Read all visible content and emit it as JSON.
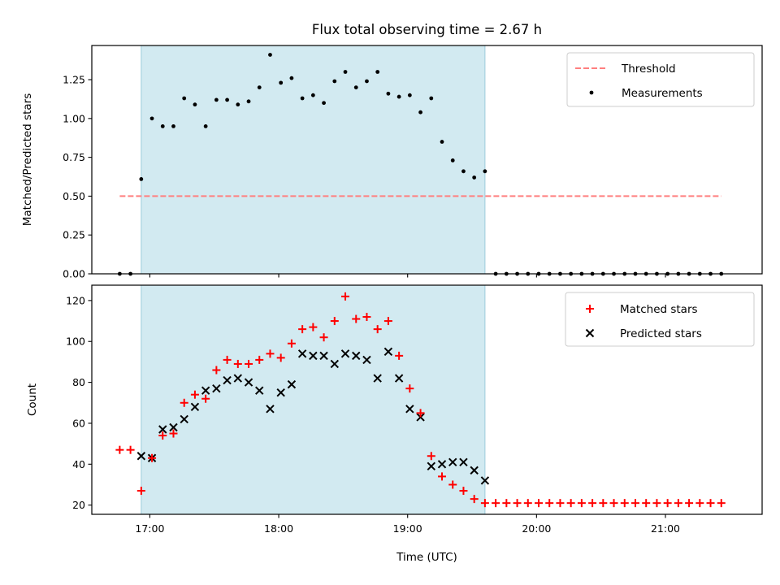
{
  "chart_data": [
    {
      "type": "scatter",
      "title": "Flux total observing time = 2.67 h",
      "xlabel": "",
      "ylabel": "Matched/Predicted stars",
      "xlim": [
        "16:33",
        "21:45"
      ],
      "ylim": [
        0,
        1.47
      ],
      "y_ticks": [
        "0.00",
        "0.25",
        "0.50",
        "0.75",
        "1.00",
        "1.25"
      ],
      "y_tick_values": [
        0,
        0.25,
        0.5,
        0.75,
        1.0,
        1.25
      ],
      "x_tick_values": [
        "17:00",
        "18:00",
        "19:00",
        "20:00",
        "21:00"
      ],
      "shaded_span": [
        "16:56",
        "19:36"
      ],
      "shade_color": "#add8e6",
      "legend_position": "upper right",
      "threshold": {
        "name": "Threshold",
        "y": 0.5,
        "x_range": [
          "16:46",
          "21:26"
        ],
        "color": "#ff7f7f",
        "style": "dashed"
      },
      "series": [
        {
          "name": "Measurements",
          "marker": "dot",
          "color": "#000000",
          "x": [
            "16:46",
            "16:51",
            "16:56",
            "17:01",
            "17:06",
            "17:11",
            "17:16",
            "17:21",
            "17:26",
            "17:31",
            "17:36",
            "17:41",
            "17:46",
            "17:51",
            "17:56",
            "18:01",
            "18:06",
            "18:11",
            "18:16",
            "18:21",
            "18:26",
            "18:31",
            "18:36",
            "18:41",
            "18:46",
            "18:51",
            "18:56",
            "19:01",
            "19:06",
            "19:11",
            "19:16",
            "19:21",
            "19:26",
            "19:31",
            "19:36",
            "19:41",
            "19:46",
            "19:51",
            "19:56",
            "20:01",
            "20:06",
            "20:11",
            "20:16",
            "20:21",
            "20:26",
            "20:31",
            "20:36",
            "20:41",
            "20:46",
            "20:51",
            "20:56",
            "21:01",
            "21:06",
            "21:11",
            "21:16",
            "21:21",
            "21:26"
          ],
          "y": [
            0,
            0,
            0.61,
            1.0,
            0.95,
            0.95,
            1.13,
            1.09,
            0.95,
            1.12,
            1.12,
            1.09,
            1.11,
            1.2,
            1.41,
            1.23,
            1.26,
            1.13,
            1.15,
            1.1,
            1.24,
            1.3,
            1.2,
            1.24,
            1.3,
            1.16,
            1.14,
            1.15,
            1.04,
            1.13,
            0.85,
            0.73,
            0.66,
            0.62,
            0.66,
            0,
            0,
            0,
            0,
            0,
            0,
            0,
            0,
            0,
            0,
            0,
            0,
            0,
            0,
            0,
            0,
            0,
            0,
            0,
            0,
            0,
            0
          ]
        }
      ]
    },
    {
      "type": "scatter",
      "title": "",
      "xlabel": "Time (UTC)",
      "ylabel": "Count",
      "xlim": [
        "16:33",
        "21:45"
      ],
      "ylim": [
        15.5,
        127.5
      ],
      "y_ticks": [
        "20",
        "40",
        "60",
        "80",
        "100",
        "120"
      ],
      "y_tick_values": [
        20,
        40,
        60,
        80,
        100,
        120
      ],
      "x_ticks": [
        "17:00",
        "18:00",
        "19:00",
        "20:00",
        "21:00"
      ],
      "x_tick_values": [
        "17:00",
        "18:00",
        "19:00",
        "20:00",
        "21:00"
      ],
      "shaded_span": [
        "16:56",
        "19:36"
      ],
      "shade_color": "#add8e6",
      "legend_position": "upper right",
      "series": [
        {
          "name": "Matched stars",
          "marker": "plus",
          "color": "#ff0000",
          "x": [
            "16:46",
            "16:51",
            "16:56",
            "17:01",
            "17:06",
            "17:11",
            "17:16",
            "17:21",
            "17:26",
            "17:31",
            "17:36",
            "17:41",
            "17:46",
            "17:51",
            "17:56",
            "18:01",
            "18:06",
            "18:11",
            "18:16",
            "18:21",
            "18:26",
            "18:31",
            "18:36",
            "18:41",
            "18:46",
            "18:51",
            "18:56",
            "19:01",
            "19:06",
            "19:11",
            "19:16",
            "19:21",
            "19:26",
            "19:31",
            "19:36",
            "19:41",
            "19:46",
            "19:51",
            "19:56",
            "20:01",
            "20:06",
            "20:11",
            "20:16",
            "20:21",
            "20:26",
            "20:31",
            "20:36",
            "20:41",
            "20:46",
            "20:51",
            "20:56",
            "21:01",
            "21:06",
            "21:11",
            "21:16",
            "21:21",
            "21:26"
          ],
          "y": [
            47,
            47,
            27,
            43,
            54,
            55,
            70,
            74,
            72,
            86,
            91,
            89,
            89,
            91,
            94,
            92,
            99,
            106,
            107,
            102,
            110,
            122,
            111,
            112,
            106,
            110,
            93,
            77,
            65,
            44,
            34,
            30,
            27,
            23,
            21,
            21,
            21,
            21,
            21,
            21,
            21,
            21,
            21,
            21,
            21,
            21,
            21,
            21,
            21,
            21,
            21,
            21,
            21,
            21,
            21,
            21,
            21
          ]
        },
        {
          "name": "Predicted stars",
          "marker": "x",
          "color": "#000000",
          "x": [
            "16:56",
            "17:01",
            "17:06",
            "17:11",
            "17:16",
            "17:21",
            "17:26",
            "17:31",
            "17:36",
            "17:41",
            "17:46",
            "17:51",
            "17:56",
            "18:01",
            "18:06",
            "18:11",
            "18:16",
            "18:21",
            "18:26",
            "18:31",
            "18:36",
            "18:41",
            "18:46",
            "18:51",
            "18:56",
            "19:01",
            "19:06",
            "19:11",
            "19:16",
            "19:21",
            "19:26",
            "19:31",
            "19:36"
          ],
          "y": [
            44,
            43,
            57,
            58,
            62,
            68,
            76,
            77,
            81,
            82,
            80,
            76,
            67,
            75,
            79,
            94,
            93,
            93,
            89,
            94,
            93,
            91,
            82,
            95,
            82,
            67,
            63,
            39,
            40,
            41,
            41,
            37,
            32
          ]
        }
      ]
    }
  ]
}
